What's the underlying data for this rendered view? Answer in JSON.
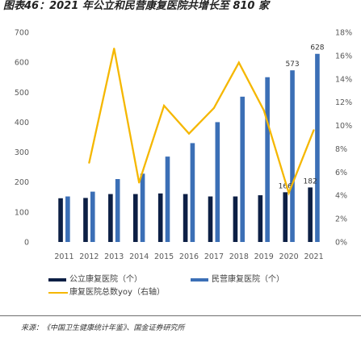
{
  "chart_data": {
    "type": "bar",
    "title": "图表46：2021 年公立和民营康复医院共增长至 810 家",
    "xlabel": "",
    "ylabel": "",
    "categories": [
      "2011",
      "2012",
      "2013",
      "2014",
      "2015",
      "2016",
      "2017",
      "2018",
      "2019",
      "2020",
      "2021"
    ],
    "series": [
      {
        "name": "公立康复医院（个）",
        "type": "bar",
        "axis": "left",
        "color": "#0c1f45",
        "values": [
          146,
          147,
          160,
          160,
          162,
          160,
          152,
          152,
          156,
          166,
          182
        ],
        "data_labels": [
          null,
          null,
          null,
          null,
          null,
          null,
          null,
          null,
          null,
          "166",
          "182"
        ]
      },
      {
        "name": "民营康复医院（个）",
        "type": "bar",
        "axis": "left",
        "color": "#3b6fb6",
        "values": [
          152,
          168,
          210,
          228,
          285,
          330,
          400,
          485,
          550,
          573,
          628
        ],
        "data_labels": [
          null,
          null,
          null,
          null,
          null,
          null,
          null,
          null,
          null,
          "573",
          "628"
        ]
      },
      {
        "name": "康复医院总数yoy（右轴）",
        "type": "line",
        "axis": "right",
        "color": "#f5b700",
        "values": [
          null,
          6.8,
          16.6,
          5.1,
          11.7,
          9.3,
          11.5,
          15.4,
          11.3,
          4.2,
          9.6
        ]
      }
    ],
    "ylim": [
      0,
      700
    ],
    "y_tick_labels": [
      "0",
      "100",
      "200",
      "300",
      "400",
      "500",
      "600",
      "700"
    ],
    "y2lim": [
      0,
      18
    ],
    "y2_tick_labels": [
      "0%",
      "2%",
      "4%",
      "6%",
      "8%",
      "10%",
      "12%",
      "14%",
      "16%",
      "18%"
    ],
    "grid": false,
    "legend_position": "bottom"
  },
  "footer": {
    "source": "来源：《中国卫生健康统计年鉴》、国金证券研究所"
  }
}
